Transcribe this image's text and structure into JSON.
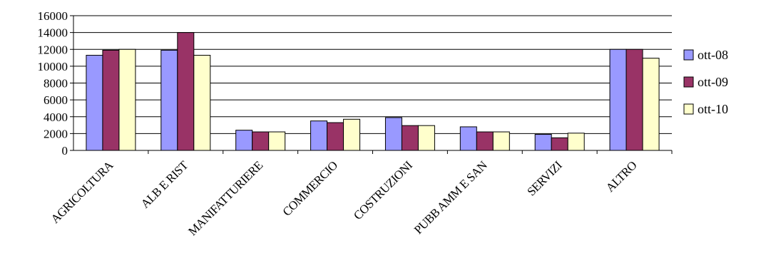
{
  "chart_data": {
    "type": "bar",
    "categories": [
      "AGRICOLTURA",
      "ALB E RIST",
      "MANIFATTURIERE",
      "COMMERCIO",
      "COSTRUZIONI",
      "PUBB AMM E SAN",
      "SERVIZI",
      "ALTRO"
    ],
    "series": [
      {
        "name": "ott-08",
        "color": "#9999FF",
        "values": [
          11300,
          11900,
          2400,
          3500,
          3900,
          2800,
          1900,
          12000
        ]
      },
      {
        "name": "ott-09",
        "color": "#993366",
        "values": [
          11900,
          14000,
          2200,
          3300,
          2950,
          2200,
          1500,
          12000
        ]
      },
      {
        "name": "ott-10",
        "color": "#FFFFCC",
        "values": [
          12000,
          11300,
          2200,
          3700,
          2950,
          2200,
          2050,
          10950
        ]
      }
    ],
    "ylim": [
      0,
      16000
    ],
    "yticks": [
      0,
      2000,
      4000,
      6000,
      8000,
      10000,
      12000,
      14000,
      16000
    ],
    "grid": true,
    "legend_position": "right",
    "title": "",
    "xlabel": "",
    "ylabel": ""
  }
}
